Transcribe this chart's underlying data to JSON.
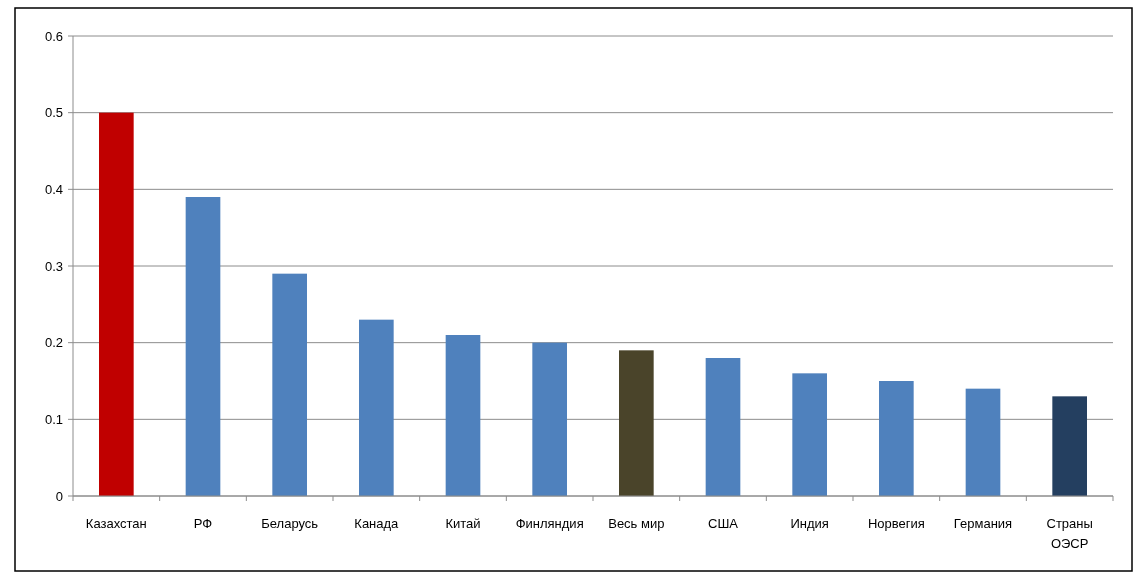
{
  "chart_data": {
    "type": "bar",
    "categories": [
      "Казахстан",
      "РФ",
      "Беларусь",
      "Канада",
      "Китай",
      "Финляндия",
      "Весь мир",
      "США",
      "Индия",
      "Норвегия",
      "Германия",
      "Страны ОЭСР"
    ],
    "values": [
      0.5,
      0.39,
      0.29,
      0.23,
      0.21,
      0.2,
      0.19,
      0.18,
      0.16,
      0.15,
      0.14,
      0.13
    ],
    "colors": [
      "#c00000",
      "#4f81bd",
      "#4f81bd",
      "#4f81bd",
      "#4f81bd",
      "#4f81bd",
      "#4a442a",
      "#4f81bd",
      "#4f81bd",
      "#4f81bd",
      "#4f81bd",
      "#243f60"
    ],
    "ylim": [
      0,
      0.6
    ],
    "yticks": [
      0,
      0.1,
      0.2,
      0.3,
      0.4,
      0.5,
      0.6
    ],
    "grid": "y"
  }
}
